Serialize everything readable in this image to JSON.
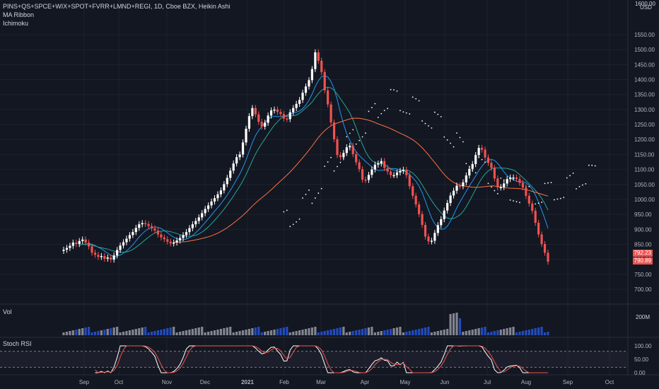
{
  "header": {
    "symbol": "PINS+QS+SPCE+WIX+SPOT+FVRR+LMND+REGI, 1D, Cboe BZX, Heikin Ashi",
    "indicator_1": "MA Ribbon",
    "indicator_2": "Ichimoku",
    "currency": "USD",
    "corner_value": "1600.00"
  },
  "price_tags": {
    "upper": "792.23",
    "lower": "790.89"
  },
  "volume_pane": {
    "label": "Vol",
    "tick": "200M"
  },
  "stoch_pane": {
    "label": "Stoch RSI",
    "ticks": [
      "100.00",
      "50.00",
      "0.00"
    ]
  },
  "colors": {
    "up": "#ffffff",
    "down": "#ef5350",
    "background": "#131722",
    "ma_fast": "#2196f3",
    "ma_mid": "#26a69a",
    "ma_slow": "#ff7043",
    "stoch_k": "#ffffff",
    "stoch_d": "#ef5350",
    "vol_up": "#b2b5be",
    "vol_down": "#2962ff"
  },
  "chart_data": {
    "type": "candlestick",
    "y_ticks": [
      "1550.00",
      "1500.00",
      "1450.00",
      "1400.00",
      "1350.00",
      "1300.00",
      "1250.00",
      "1200.00",
      "1150.00",
      "1100.00",
      "1050.00",
      "1000.00",
      "950.00",
      "900.00",
      "850.00",
      "800.00",
      "750.00",
      "700.00"
    ],
    "x_ticks": [
      "Sep",
      "Oct",
      "Nov",
      "Dec",
      "2021",
      "Feb",
      "Mar",
      "Apr",
      "May",
      "Jun",
      "Jul",
      "Aug",
      "Sep",
      "Oct"
    ],
    "ylim": [
      685,
      1600
    ],
    "closes": [
      832,
      838,
      845,
      856,
      851,
      861,
      866,
      856,
      843,
      822,
      815,
      808,
      811,
      802,
      806,
      799,
      813,
      831,
      846,
      857,
      869,
      881,
      891,
      905,
      917,
      921,
      918,
      911,
      903,
      896,
      883,
      873,
      867,
      859,
      853,
      856,
      863,
      871,
      881,
      891,
      904,
      917,
      928,
      940,
      954,
      968,
      980,
      993,
      1004,
      1017,
      1030,
      1051,
      1072,
      1096,
      1120,
      1141,
      1150,
      1190,
      1236,
      1278,
      1305,
      1284,
      1259,
      1243,
      1256,
      1280,
      1297,
      1300,
      1292,
      1285,
      1270,
      1268,
      1291,
      1305,
      1319,
      1332,
      1356,
      1377,
      1398,
      1435,
      1491,
      1463,
      1425,
      1364,
      1317,
      1257,
      1201,
      1148,
      1141,
      1155,
      1174,
      1179,
      1151,
      1124,
      1101,
      1066,
      1065,
      1082,
      1100,
      1116,
      1120,
      1128,
      1105,
      1093,
      1081,
      1081,
      1090,
      1095,
      1099,
      1081,
      1044,
      1012,
      983,
      951,
      915,
      876,
      860,
      862,
      888,
      914,
      934,
      963,
      988,
      1013,
      1029,
      1046,
      1044,
      1057,
      1080,
      1102,
      1118,
      1148,
      1172,
      1166,
      1140,
      1122,
      1105,
      1070,
      1040,
      1041,
      1053,
      1068,
      1073,
      1073,
      1068,
      1055,
      1040,
      1012,
      986,
      962,
      922,
      883,
      851,
      822,
      792
    ],
    "y_unit_note": ""
  }
}
